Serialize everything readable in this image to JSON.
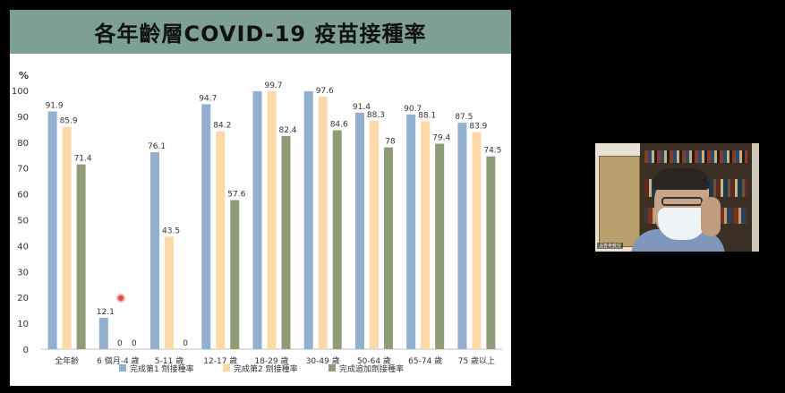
{
  "slide": {
    "title": "各年齡層COVID-19 疫苗接種率"
  },
  "chart_data": {
    "type": "bar",
    "title": "各年齡層COVID-19 疫苗接種率",
    "ylabel": "%",
    "ylim": [
      0,
      100
    ],
    "yticks": [
      0,
      10,
      20,
      30,
      40,
      50,
      60,
      70,
      80,
      90,
      100
    ],
    "categories": [
      "全年齡",
      "6 個月-4 歲",
      "5-11 歲",
      "12-17 歲",
      "18-29 歲",
      "30-49 歲",
      "50-64 歲",
      "65-74 歲",
      "75 歲以上"
    ],
    "series": [
      {
        "name": "完成第1 劑接種率",
        "color": "#92afcf",
        "values": [
          91.9,
          12.1,
          76.1,
          94.7,
          99.7,
          99.7,
          91.4,
          90.7,
          87.5
        ],
        "labels": [
          "91.9",
          "12.1",
          "76.1",
          "94.7",
          "",
          "",
          "91.4",
          "90.7",
          "87.5"
        ]
      },
      {
        "name": "完成第2 劑接種率",
        "color": "#fcd9a6",
        "values": [
          85.9,
          0,
          43.5,
          84.2,
          99.7,
          97.6,
          88.3,
          88.1,
          83.9
        ],
        "labels": [
          "85.9",
          "0",
          "43.5",
          "84.2",
          "99.7",
          "97.6",
          "88.3",
          "88.1",
          "83.9"
        ]
      },
      {
        "name": "完成追加劑接種率",
        "color": "#8f9c78",
        "values": [
          71.4,
          0,
          0,
          57.6,
          82.4,
          84.6,
          78,
          79.4,
          74.5
        ],
        "labels": [
          "71.4",
          "0",
          "0",
          "57.6",
          "82.4",
          "84.6",
          "78",
          "79.4",
          "74.5"
        ]
      }
    ],
    "grid": false,
    "legend": "bottom"
  },
  "webcam": {
    "label": "溫春英教授"
  }
}
